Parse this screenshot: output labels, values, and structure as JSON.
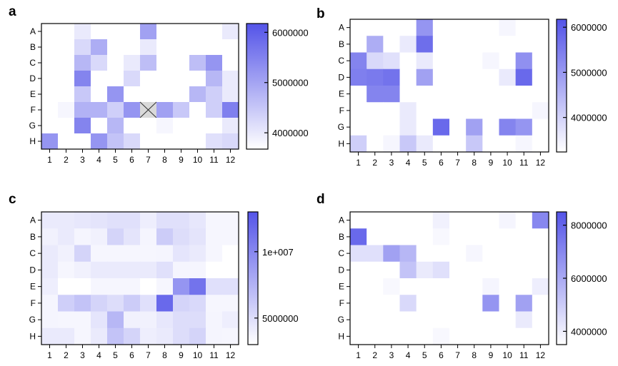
{
  "chart_data": [
    {
      "type": "heatmap",
      "panel": "a",
      "rows": [
        "A",
        "B",
        "C",
        "D",
        "E",
        "F",
        "G",
        "H"
      ],
      "cols": [
        "1",
        "2",
        "3",
        "4",
        "5",
        "6",
        "7",
        "8",
        "9",
        "10",
        "11",
        "12"
      ],
      "values": [
        [
          0,
          0,
          0.12,
          0,
          0,
          0,
          0.55,
          0,
          0,
          0,
          0,
          0.12
        ],
        [
          0,
          0,
          0.22,
          0.48,
          0,
          0,
          0.12,
          0,
          0,
          0,
          0,
          0
        ],
        [
          0,
          0,
          0.42,
          0.22,
          0,
          0.12,
          0.38,
          0,
          0,
          0.38,
          0.62,
          0
        ],
        [
          0,
          0,
          0.72,
          0,
          0,
          0.22,
          0,
          0,
          0,
          0,
          0.42,
          0.12
        ],
        [
          0,
          0,
          0.32,
          0,
          0.62,
          0,
          0,
          0,
          0,
          0.42,
          0.28,
          0.12
        ],
        [
          0,
          0.05,
          0.45,
          0.45,
          0.28,
          0.62,
          null,
          0.55,
          0.32,
          0,
          0.28,
          0.75
        ],
        [
          0,
          0,
          0.72,
          0,
          0.42,
          0,
          0,
          0.05,
          0,
          0,
          0,
          0.12
        ],
        [
          0.62,
          0,
          0,
          0.62,
          0.35,
          0.22,
          0,
          0,
          0,
          0,
          0.18,
          0.22
        ]
      ],
      "colorbar": {
        "ticks": [
          "6000000",
          "5000000",
          "4000000"
        ],
        "tick_fracs": [
          0.93,
          0.53,
          0.13
        ]
      }
    },
    {
      "type": "heatmap",
      "panel": "b",
      "rows": [
        "A",
        "B",
        "C",
        "D",
        "E",
        "F",
        "G",
        "H"
      ],
      "cols": [
        "1",
        "2",
        "3",
        "4",
        "5",
        "6",
        "7",
        "8",
        "9",
        "10",
        "11",
        "12"
      ],
      "values": [
        [
          0,
          0,
          0,
          0,
          0.62,
          0,
          0,
          0,
          0,
          0.05,
          0,
          0
        ],
        [
          0,
          0.48,
          0,
          0.12,
          0.85,
          0,
          0,
          0,
          0,
          0,
          0,
          0
        ],
        [
          0.72,
          0.22,
          0.18,
          0,
          0.12,
          0,
          0,
          0,
          0.05,
          0,
          0.65,
          0
        ],
        [
          0.75,
          0.78,
          0.82,
          0,
          0.55,
          0,
          0,
          0,
          0,
          0.12,
          0.88,
          0
        ],
        [
          0,
          0.72,
          0.72,
          0,
          0,
          0,
          0,
          0,
          0,
          0,
          0,
          0
        ],
        [
          0,
          0,
          0,
          0.12,
          0,
          0,
          0,
          0,
          0,
          0,
          0,
          0.05
        ],
        [
          0,
          0,
          0,
          0.12,
          0,
          0.88,
          0,
          0.55,
          0,
          0.72,
          0.62,
          0
        ],
        [
          0.28,
          0,
          0.05,
          0.32,
          0.12,
          0,
          0,
          0.32,
          0,
          0,
          0.05,
          0
        ]
      ],
      "colorbar": {
        "ticks": [
          "6000000",
          "5000000",
          "4000000"
        ],
        "tick_fracs": [
          0.94,
          0.6,
          0.26
        ]
      }
    },
    {
      "type": "heatmap",
      "panel": "c",
      "rows": [
        "A",
        "B",
        "C",
        "D",
        "E",
        "F",
        "G",
        "H"
      ],
      "cols": [
        "1",
        "2",
        "3",
        "4",
        "5",
        "6",
        "7",
        "8",
        "9",
        "10",
        "11",
        "12"
      ],
      "values": [
        [
          0.12,
          0.12,
          0.14,
          0.16,
          0.18,
          0.18,
          0.1,
          0.18,
          0.18,
          0.14,
          0.05,
          0.05
        ],
        [
          0.08,
          0.12,
          0.06,
          0.08,
          0.25,
          0.16,
          0.06,
          0.3,
          0.2,
          0.16,
          0.05,
          0.05
        ],
        [
          0.12,
          0.08,
          0.25,
          0.05,
          0.05,
          0.05,
          0.05,
          0.06,
          0.15,
          0.12,
          0.05,
          0
        ],
        [
          0.12,
          0.05,
          0.08,
          0.12,
          0.12,
          0.12,
          0.12,
          0.18,
          0.06,
          0.06,
          0,
          0
        ],
        [
          0.1,
          0,
          0,
          0.05,
          0.05,
          0.05,
          0,
          0.05,
          0.62,
          0.82,
          0.18,
          0.18
        ],
        [
          0.06,
          0.28,
          0.35,
          0.25,
          0.2,
          0.3,
          0.18,
          0.88,
          0.25,
          0.22,
          0.05,
          0.05
        ],
        [
          0.06,
          0.05,
          0.05,
          0.15,
          0.42,
          0.08,
          0.08,
          0.14,
          0.2,
          0.2,
          0.06,
          0.1
        ],
        [
          0.12,
          0.12,
          0.05,
          0.12,
          0.35,
          0.25,
          0.1,
          0.12,
          0.2,
          0.25,
          0.06,
          0.05
        ]
      ],
      "colorbar": {
        "ticks": [
          "1e+007",
          "5000000"
        ],
        "tick_fracs": [
          0.7,
          0.2
        ]
      }
    },
    {
      "type": "heatmap",
      "panel": "d",
      "rows": [
        "A",
        "B",
        "C",
        "D",
        "E",
        "F",
        "G",
        "H"
      ],
      "cols": [
        "1",
        "2",
        "3",
        "4",
        "5",
        "6",
        "7",
        "8",
        "9",
        "10",
        "11",
        "12"
      ],
      "values": [
        [
          0,
          0,
          0,
          0,
          0,
          0.08,
          0,
          0,
          0,
          0.06,
          0,
          0.7
        ],
        [
          0.88,
          0,
          0,
          0,
          0,
          0.04,
          0,
          0,
          0,
          0,
          0,
          0
        ],
        [
          0.18,
          0.18,
          0.55,
          0.42,
          0,
          0,
          0,
          0.05,
          0,
          0,
          0,
          0
        ],
        [
          0,
          0,
          0,
          0.35,
          0.12,
          0.18,
          0,
          0,
          0,
          0,
          0,
          0
        ],
        [
          0,
          0,
          0.04,
          0,
          0,
          0,
          0,
          0,
          0.06,
          0,
          0,
          0.1
        ],
        [
          0,
          0,
          0,
          0.22,
          0,
          0,
          0,
          0,
          0.62,
          0,
          0.55,
          0
        ],
        [
          0,
          0,
          0,
          0,
          0,
          0,
          0,
          0,
          0,
          0,
          0.12,
          0
        ],
        [
          0,
          0,
          0,
          0,
          0,
          0.04,
          0,
          0,
          0,
          0,
          0,
          0
        ]
      ],
      "colorbar": {
        "ticks": [
          "8000000",
          "6000000",
          "4000000"
        ],
        "tick_fracs": [
          0.9,
          0.5,
          0.1
        ]
      }
    }
  ]
}
